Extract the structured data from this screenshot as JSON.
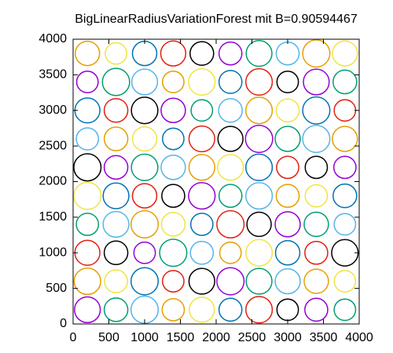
{
  "chart_data": {
    "type": "circles",
    "title": "BigLinearRadiusVariationForest mit B=0.90594467",
    "xlim": [
      0,
      4000
    ],
    "ylim": [
      0,
      4000
    ],
    "xticks": [
      0,
      500,
      1000,
      1500,
      2000,
      2500,
      3000,
      3500,
      4000
    ],
    "yticks": [
      0,
      500,
      1000,
      1500,
      2000,
      2500,
      3000,
      3500,
      4000
    ],
    "series": [
      {
        "color": "#9400d3",
        "x": [
          200,
          3400,
          2200,
          1000,
          3000,
          1800,
          600,
          3800,
          2600,
          1400,
          200,
          3400,
          2200
        ],
        "y": [
          200,
          200,
          600,
          1000,
          1400,
          1800,
          2200,
          2200,
          2600,
          3000,
          3400,
          3400,
          3800
        ],
        "r": [
          180,
          160,
          190,
          150,
          175,
          185,
          165,
          155,
          190,
          170,
          150,
          180,
          160
        ]
      },
      {
        "color": "#009e73",
        "x": [
          600,
          3800,
          2600,
          1400,
          200,
          3400,
          2200,
          1000,
          3000,
          1800,
          600,
          3800,
          2600
        ],
        "y": [
          200,
          200,
          600,
          1000,
          1400,
          1400,
          1800,
          2200,
          2600,
          3000,
          3400,
          3400,
          3800
        ],
        "r": [
          165,
          150,
          180,
          190,
          155,
          170,
          160,
          185,
          175,
          150,
          190,
          165,
          180
        ]
      },
      {
        "color": "#56b4e9",
        "x": [
          1000,
          3000,
          1800,
          600,
          3800,
          2600,
          1400,
          200,
          3400,
          2200,
          1000,
          3000
        ],
        "y": [
          200,
          600,
          1000,
          1400,
          1400,
          1800,
          2200,
          2600,
          2600,
          3000,
          3400,
          3800
        ],
        "r": [
          190,
          175,
          160,
          180,
          150,
          185,
          170,
          155,
          190,
          165,
          180,
          160
        ]
      },
      {
        "color": "#e69f00",
        "x": [
          1400,
          200,
          3400,
          2200,
          1000,
          3000,
          1800,
          600,
          3800,
          2600,
          1400,
          200,
          3400
        ],
        "y": [
          200,
          600,
          600,
          1000,
          1400,
          1800,
          2200,
          2600,
          2600,
          3000,
          3400,
          3800,
          3800
        ],
        "r": [
          155,
          185,
          170,
          150,
          190,
          160,
          180,
          165,
          175,
          185,
          150,
          170,
          190
        ]
      },
      {
        "color": "#f0e442",
        "x": [
          1800,
          600,
          3800,
          2600,
          1400,
          200,
          3400,
          2200,
          1000,
          3000,
          1800,
          600,
          3800
        ],
        "y": [
          200,
          600,
          600,
          1000,
          1400,
          1800,
          1800,
          2200,
          2600,
          3000,
          3400,
          3800,
          3800
        ],
        "r": [
          175,
          160,
          150,
          185,
          165,
          190,
          155,
          180,
          170,
          160,
          185,
          150,
          175
        ]
      },
      {
        "color": "#0072b2",
        "x": [
          2200,
          1000,
          3000,
          1800,
          600,
          3800,
          2600,
          1400,
          200,
          3400,
          2200,
          1000
        ],
        "y": [
          200,
          600,
          1000,
          1400,
          1800,
          1800,
          2200,
          2600,
          3000,
          3000,
          3400,
          3800
        ],
        "r": [
          160,
          190,
          170,
          155,
          180,
          165,
          185,
          150,
          175,
          190,
          160,
          170
        ]
      },
      {
        "color": "#e51e10",
        "x": [
          2600,
          1400,
          200,
          3400,
          2200,
          1000,
          3000,
          1800,
          600,
          3800,
          2600,
          1400
        ],
        "y": [
          200,
          600,
          1000,
          1000,
          1400,
          1800,
          2200,
          2600,
          3000,
          3000,
          3400,
          3800
        ],
        "r": [
          185,
          150,
          175,
          160,
          190,
          170,
          155,
          180,
          165,
          150,
          185,
          175
        ]
      },
      {
        "color": "#000000",
        "x": [
          3000,
          1800,
          600,
          3800,
          2600,
          1400,
          200,
          3400,
          2200,
          1000,
          3000,
          1800
        ],
        "y": [
          200,
          600,
          1000,
          1000,
          1400,
          1800,
          2200,
          2200,
          2600,
          3000,
          3400,
          3800
        ],
        "r": [
          150,
          180,
          165,
          185,
          170,
          160,
          190,
          155,
          175,
          185,
          150,
          165
        ]
      }
    ]
  }
}
